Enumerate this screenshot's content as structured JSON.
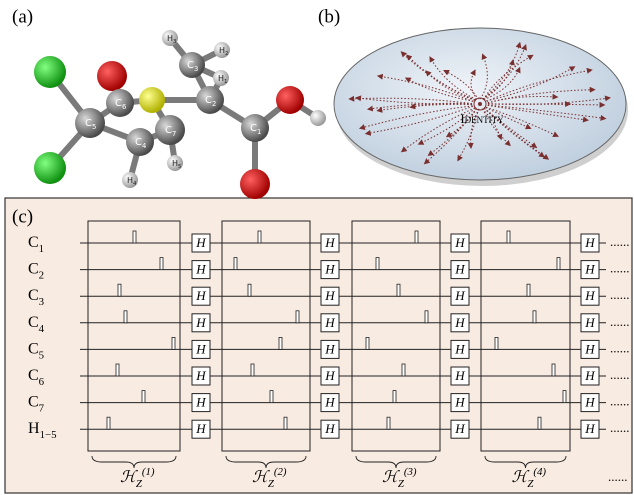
{
  "panel_a": {
    "label": "(a)",
    "atoms": [
      {
        "symbol": "H",
        "index": "3"
      },
      {
        "symbol": "H",
        "index": "2"
      },
      {
        "symbol": "C",
        "index": "3"
      },
      {
        "symbol": "H",
        "index": "1"
      },
      {
        "symbol": "C",
        "index": "6"
      },
      {
        "symbol": "C",
        "index": "5"
      },
      {
        "symbol": "C",
        "index": "2"
      },
      {
        "symbol": "C",
        "index": "7"
      },
      {
        "symbol": "C",
        "index": "4"
      },
      {
        "symbol": "C",
        "index": "1"
      },
      {
        "symbol": "H",
        "index": "5"
      },
      {
        "symbol": "H",
        "index": "4"
      }
    ]
  },
  "panel_b": {
    "label": "(b)",
    "center": "Identity"
  },
  "panel_c": {
    "label": "(c)",
    "rows": [
      {
        "symbol": "C",
        "index": "1"
      },
      {
        "symbol": "C",
        "index": "2"
      },
      {
        "symbol": "C",
        "index": "3"
      },
      {
        "symbol": "C",
        "index": "4"
      },
      {
        "symbol": "C",
        "index": "5"
      },
      {
        "symbol": "C",
        "index": "6"
      },
      {
        "symbol": "C",
        "index": "7"
      },
      {
        "symbol": "H",
        "index": "1−5"
      }
    ],
    "gate": "H",
    "blocks": [
      {
        "symbol": "ℋ",
        "sub": "Z",
        "sup": "(1)"
      },
      {
        "symbol": "ℋ",
        "sub": "Z",
        "sup": "(2)"
      },
      {
        "symbol": "ℋ",
        "sub": "Z",
        "sup": "(3)"
      },
      {
        "symbol": "ℋ",
        "sub": "Z",
        "sup": "(4)"
      }
    ],
    "ellipsis": "......"
  }
}
